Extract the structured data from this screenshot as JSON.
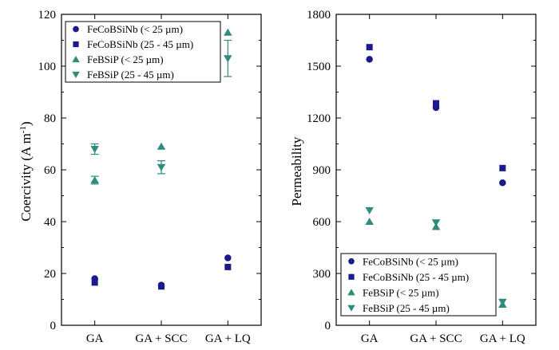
{
  "colors": {
    "fecobsinb": "#1a1a8c",
    "febsip": "#2e8b7e",
    "axis": "#000000"
  },
  "chart_data": [
    {
      "type": "scatter",
      "title": "",
      "xlabel": "",
      "ylabel": "Coercivity (A m",
      "ylabel_sup": "-1",
      "ylabel_close": ")",
      "categories": [
        "GA",
        "GA + SCC",
        "GA + LQ"
      ],
      "ylim": [
        0,
        120
      ],
      "yticks": [
        0,
        20,
        40,
        60,
        80,
        100,
        120
      ],
      "legend_position": "top-left",
      "series": [
        {
          "name": "FeCoBSiNb (< 25 µm)",
          "marker": "circle",
          "color_key": "fecobsinb",
          "values": [
            18,
            15.5,
            26
          ],
          "err": [
            0,
            0,
            0
          ]
        },
        {
          "name": "FeCoBSiNb (25 - 45 µm)",
          "marker": "square",
          "color_key": "fecobsinb",
          "values": [
            16.5,
            15,
            22.5
          ],
          "err": [
            0,
            0,
            0
          ]
        },
        {
          "name": "FeBSiP (< 25 µm)",
          "marker": "triangle-up",
          "color_key": "febsip",
          "values": [
            56,
            69,
            113
          ],
          "err": [
            1.5,
            0,
            0
          ]
        },
        {
          "name": "FeBSiP (25 - 45 µm)",
          "marker": "triangle-down",
          "color_key": "febsip",
          "values": [
            68,
            61,
            103
          ],
          "err": [
            2,
            2.5,
            7
          ]
        }
      ]
    },
    {
      "type": "scatter",
      "title": "",
      "xlabel": "",
      "ylabel": "Permeability",
      "categories": [
        "GA",
        "GA + SCC",
        "GA + LQ"
      ],
      "ylim": [
        0,
        1800
      ],
      "yticks": [
        0,
        300,
        600,
        900,
        1200,
        1500,
        1800
      ],
      "legend_position": "bottom-left",
      "series": [
        {
          "name": "FeCoBSiNb (< 25 µm)",
          "marker": "circle",
          "color_key": "fecobsinb",
          "values": [
            1540,
            1260,
            825
          ]
        },
        {
          "name": "FeCoBSiNb (25 - 45 µm)",
          "marker": "square",
          "color_key": "fecobsinb",
          "values": [
            1610,
            1285,
            910
          ]
        },
        {
          "name": "FeBSiP (< 25 µm)",
          "marker": "triangle-up",
          "color_key": "febsip",
          "values": [
            600,
            570,
            120
          ]
        },
        {
          "name": "FeBSiP (25 - 45 µm)",
          "marker": "triangle-down",
          "color_key": "febsip",
          "values": [
            665,
            595,
            135
          ]
        }
      ]
    }
  ]
}
